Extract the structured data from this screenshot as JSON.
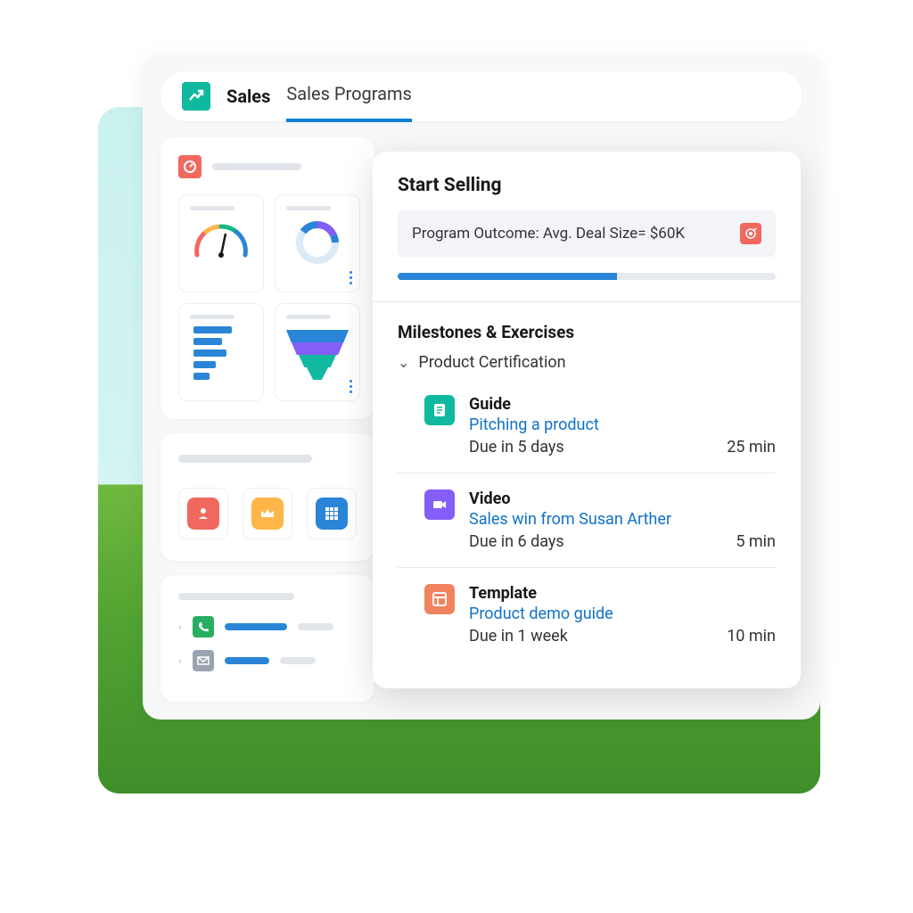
{
  "header": {
    "brand": "Sales",
    "tabs": [
      {
        "label": "Sales Programs",
        "active": true
      }
    ],
    "logo_bg": "#0fb9a0"
  },
  "dashboard_card": {
    "icon_bg": "#f1685f",
    "charts": {
      "gauge": {
        "type": "gauge",
        "arc_colors": [
          "#f1685f",
          "#ffb547",
          "#12b886",
          "#2a85d8"
        ],
        "needle_angle_deg": 130
      },
      "donut": {
        "type": "donut",
        "segments": [
          {
            "color": "#2a85d8",
            "fraction": 0.25
          },
          {
            "color": "#845ef7",
            "fraction": 0.3
          },
          {
            "color": "#daeaf7",
            "fraction": 0.45
          }
        ]
      },
      "bars": {
        "type": "bar-horizontal",
        "bar_color": "#2a85d8",
        "values": [
          70,
          52,
          60,
          40,
          30
        ]
      },
      "funnel": {
        "type": "funnel",
        "segments": [
          {
            "color": "#2a85d8",
            "width_pct": 100
          },
          {
            "color": "#845ef7",
            "width_pct": 80
          },
          {
            "color": "#12b8a0",
            "width_pct": 55
          },
          {
            "color": "#12b8a0",
            "width_pct": 28
          }
        ]
      }
    }
  },
  "badges_card": {
    "badges": [
      {
        "name": "star-badge",
        "bg": "#f1685f",
        "glyph": "star"
      },
      {
        "name": "crown-badge",
        "bg": "#ffb547",
        "glyph": "crown"
      },
      {
        "name": "grid-badge",
        "bg": "#2a85d8",
        "glyph": "grid"
      }
    ]
  },
  "list_card": {
    "rows": [
      {
        "icon_name": "phone-icon",
        "icon_bg": "#27ae60"
      },
      {
        "icon_name": "email-icon",
        "icon_bg": "#9aa4b1"
      }
    ]
  },
  "overlay": {
    "title": "Start Selling",
    "outcome_label": "Program Outcome: Avg. Deal Size= $60K",
    "outcome_icon_bg": "#f1685f",
    "progress_pct": 58,
    "section_title": "Milestones & Exercises",
    "group_label": "Product Certification",
    "items": [
      {
        "type_label": "Guide",
        "link_text": "Pitching a product",
        "due_text": "Due in 5 days",
        "duration_text": "25 min",
        "icon_bg": "#0fb9a0",
        "icon_name": "guide-icon"
      },
      {
        "type_label": "Video",
        "link_text": "Sales win from Susan Arther",
        "due_text": "Due in 6 days",
        "duration_text": "5 min",
        "icon_bg": "#845ef7",
        "icon_name": "video-icon"
      },
      {
        "type_label": "Template",
        "link_text": "Product demo guide",
        "due_text": "Due in 1 week",
        "duration_text": "10 min",
        "icon_bg": "#f1845f",
        "icon_name": "template-icon"
      }
    ]
  },
  "colors": {
    "accent_blue": "#2a85d8",
    "link_blue": "#0f72c9",
    "card_bg": "#ffffff",
    "page_bg": "#f7f8fa",
    "placeholder_gray": "#e1e5ea"
  }
}
